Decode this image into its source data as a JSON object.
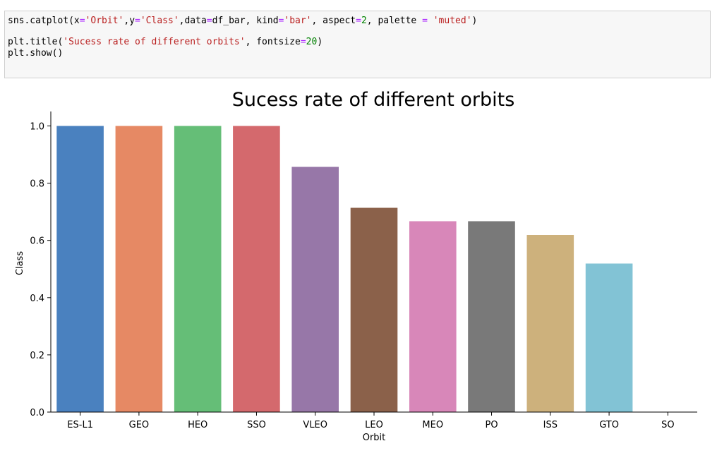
{
  "code_cell": {
    "line1": {
      "p1": "sns.catplot(x",
      "eq1": "=",
      "s1": "'Orbit'",
      "p2": ",y",
      "eq2": "=",
      "s2": "'Class'",
      "p3": ",data",
      "eq3": "=",
      "p4": "df_bar, kind",
      "eq4": "=",
      "s3": "'bar'",
      "p5": ", aspect",
      "eq5": "=",
      "n1": "2",
      "p6": ", palette ",
      "eq6": "=",
      "p7": " ",
      "s4": "'muted'",
      "p8": ")"
    },
    "line2": {
      "p1": "plt.title(",
      "s1": "'Sucess rate of different orbits'",
      "p2": ", fontsize",
      "eq1": "=",
      "n1": "20",
      "p3": ")"
    },
    "line3": "plt.show()"
  },
  "chart_data": {
    "type": "bar",
    "title": "Sucess rate of different orbits",
    "xlabel": "Orbit",
    "ylabel": "Class",
    "categories": [
      "ES-L1",
      "GEO",
      "HEO",
      "SSO",
      "VLEO",
      "LEO",
      "MEO",
      "PO",
      "ISS",
      "GTO",
      "SO"
    ],
    "values": [
      1.0,
      1.0,
      1.0,
      1.0,
      0.857,
      0.714,
      0.667,
      0.667,
      0.619,
      0.519,
      0.0
    ],
    "colors": [
      "#4a81bf",
      "#e68964",
      "#65be77",
      "#d4696d",
      "#9777a8",
      "#8b614a",
      "#d887b9",
      "#797979",
      "#cdb17c",
      "#82c3d5",
      "#4a81bf"
    ],
    "ylim": [
      0,
      1.05
    ],
    "yticks": [
      "0.0",
      "0.2",
      "0.4",
      "0.6",
      "0.8",
      "1.0"
    ],
    "ytick_values": [
      0,
      0.2,
      0.4,
      0.6,
      0.8,
      1.0
    ],
    "grid": false,
    "legend": "none"
  }
}
